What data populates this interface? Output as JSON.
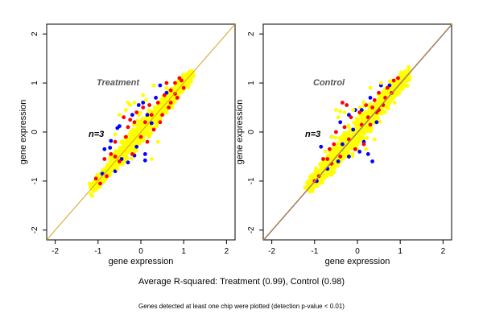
{
  "summary_text": "Average R-squared: Treatment (0.99), Control (0.98)",
  "note_text": "Genes detected at least one chip were plotted (detection p-value < 0.01)",
  "colors": {
    "series_a": "#0000ff",
    "series_b": "#ff0000",
    "series_c": "#ffff00",
    "diagonal": "#d4a020",
    "diagonal_control": "#6a5acd",
    "box": "#000000"
  },
  "chart_data": [
    {
      "type": "scatter",
      "panel": "treatment",
      "title": "",
      "label": "Treatment",
      "annotation": "n=3",
      "xlabel": "gene expression",
      "ylabel": "gene expression",
      "xlim": [
        -2.2,
        2.2
      ],
      "ylim": [
        -2.2,
        2.2
      ],
      "xticks": [
        -2,
        -1,
        0,
        1,
        2
      ],
      "yticks": [
        -2,
        -1,
        0,
        1,
        2
      ],
      "xtick_labels": [
        "-2",
        "-1",
        "0",
        "1",
        "2"
      ],
      "ytick_labels": [
        "-2",
        "-1",
        "0",
        "1",
        "2"
      ],
      "reference_line": "y = x",
      "grid": false,
      "cloud": {
        "x_range": [
          -1.15,
          1.2
        ],
        "core_width": 0.08,
        "point_density": "dense"
      },
      "series": [
        {
          "color": "blue",
          "points": [
            [
              -0.85,
              -0.35
            ],
            [
              -0.72,
              -0.32
            ],
            [
              -0.55,
              0.08
            ],
            [
              -0.5,
              0.12
            ],
            [
              -0.7,
              -0.18
            ],
            [
              -0.45,
              -0.55
            ],
            [
              -0.3,
              -0.62
            ],
            [
              -0.15,
              -0.48
            ],
            [
              0.1,
              -0.45
            ],
            [
              -0.05,
              0.55
            ],
            [
              -0.2,
              0.35
            ],
            [
              0.15,
              0.35
            ],
            [
              0.35,
              0.7
            ],
            [
              0.6,
              0.8
            ],
            [
              0.45,
              0.95
            ],
            [
              -0.9,
              -0.85
            ],
            [
              -0.6,
              -0.8
            ],
            [
              0.25,
              0.18
            ],
            [
              -0.1,
              -0.3
            ],
            [
              0.05,
              0.6
            ],
            [
              0.1,
              -0.58
            ]
          ]
        },
        {
          "color": "red",
          "points": [
            [
              -1.05,
              -0.95
            ],
            [
              -0.85,
              -0.55
            ],
            [
              -0.7,
              -0.45
            ],
            [
              -0.6,
              -0.2
            ],
            [
              -0.4,
              0.3
            ],
            [
              -0.25,
              0.25
            ],
            [
              -0.1,
              0.4
            ],
            [
              0.05,
              0.5
            ],
            [
              0.2,
              0.55
            ],
            [
              0.4,
              0.6
            ],
            [
              0.55,
              0.75
            ],
            [
              0.7,
              0.85
            ],
            [
              0.8,
              1.0
            ],
            [
              0.95,
              1.05
            ],
            [
              0.3,
              0.05
            ],
            [
              0.5,
              0.35
            ],
            [
              0.65,
              0.5
            ],
            [
              0.15,
              -0.2
            ],
            [
              -0.2,
              -0.45
            ],
            [
              -0.5,
              -0.6
            ],
            [
              -0.35,
              -0.1
            ],
            [
              0.0,
              -0.1
            ],
            [
              0.85,
              0.7
            ],
            [
              1.0,
              0.9
            ],
            [
              -0.8,
              -0.9
            ],
            [
              -0.95,
              -1.05
            ],
            [
              0.6,
              1.0
            ],
            [
              0.9,
              1.1
            ],
            [
              -0.3,
              0.1
            ],
            [
              0.25,
              0.35
            ],
            [
              0.45,
              0.2
            ],
            [
              0.7,
              0.6
            ],
            [
              -0.6,
              -0.5
            ],
            [
              0.1,
              0.2
            ],
            [
              -0.15,
              0.2
            ],
            [
              0.8,
              0.78
            ]
          ]
        },
        {
          "color": "yellow",
          "points": [
            [
              -0.3,
              0.6
            ],
            [
              -0.25,
              0.55
            ],
            [
              -0.5,
              0.35
            ],
            [
              -0.6,
              -0.05
            ],
            [
              -0.55,
              -0.75
            ],
            [
              0.25,
              -0.55
            ],
            [
              0.3,
              0.95
            ],
            [
              -0.15,
              0.6
            ],
            [
              0.05,
              0.75
            ],
            [
              0.6,
              0.9
            ],
            [
              -0.45,
              -0.35
            ],
            [
              0.4,
              -0.2
            ],
            [
              -0.35,
              0.45
            ],
            [
              -0.65,
              -0.6
            ],
            [
              0.12,
              0.65
            ]
          ]
        }
      ]
    },
    {
      "type": "scatter",
      "panel": "control",
      "title": "",
      "label": "Control",
      "annotation": "n=3",
      "xlabel": "gene expression",
      "ylabel": "gene expression",
      "xlim": [
        -2.2,
        2.2
      ],
      "ylim": [
        -2.2,
        2.2
      ],
      "xticks": [
        -2,
        -1,
        0,
        1,
        2
      ],
      "yticks": [
        -2,
        -1,
        0,
        1,
        2
      ],
      "xtick_labels": [
        "-2",
        "-1",
        "0",
        "1",
        "2"
      ],
      "ytick_labels": [
        "-2",
        "-1",
        "0",
        "1",
        "2"
      ],
      "reference_line": "y = x",
      "grid": false,
      "cloud": {
        "x_range": [
          -1.15,
          1.2
        ],
        "core_width": 0.1,
        "point_density": "dense"
      },
      "series": [
        {
          "color": "blue",
          "points": [
            [
              -0.85,
              -0.3
            ],
            [
              -0.6,
              -0.1
            ],
            [
              -0.4,
              0.2
            ],
            [
              -0.2,
              0.35
            ],
            [
              -0.05,
              0.45
            ],
            [
              0.1,
              0.45
            ],
            [
              0.3,
              0.7
            ],
            [
              0.55,
              0.95
            ],
            [
              0.35,
              -0.6
            ],
            [
              0.25,
              -0.45
            ],
            [
              0.05,
              -0.4
            ],
            [
              -0.2,
              -0.5
            ],
            [
              -0.45,
              -0.6
            ],
            [
              -0.7,
              -0.75
            ],
            [
              -0.95,
              -1.0
            ],
            [
              0.75,
              0.95
            ],
            [
              0.45,
              0.2
            ],
            [
              -0.1,
              0.05
            ],
            [
              0.15,
              -0.2
            ],
            [
              -0.35,
              -0.25
            ]
          ]
        },
        {
          "color": "red",
          "points": [
            [
              -0.35,
              0.6
            ],
            [
              -0.25,
              0.55
            ],
            [
              -0.15,
              0.3
            ],
            [
              0.05,
              0.4
            ],
            [
              0.2,
              0.55
            ],
            [
              0.4,
              0.65
            ],
            [
              0.5,
              0.8
            ],
            [
              0.7,
              0.9
            ],
            [
              0.85,
              1.05
            ],
            [
              0.95,
              1.1
            ],
            [
              -0.8,
              -0.55
            ],
            [
              -0.65,
              -0.35
            ],
            [
              -0.5,
              0.0
            ],
            [
              -0.3,
              0.1
            ],
            [
              0.3,
              0.15
            ],
            [
              0.5,
              0.45
            ],
            [
              0.6,
              0.55
            ],
            [
              0.15,
              -0.25
            ],
            [
              -0.05,
              -0.35
            ],
            [
              -0.4,
              -0.5
            ],
            [
              -0.6,
              -0.65
            ],
            [
              -0.9,
              -0.9
            ],
            [
              -1.0,
              -1.0
            ],
            [
              0.65,
              0.7
            ],
            [
              0.8,
              0.8
            ],
            [
              0.25,
              0.3
            ],
            [
              -0.2,
              -0.15
            ],
            [
              0.1,
              0.15
            ],
            [
              0.45,
              0.4
            ],
            [
              -0.55,
              -0.25
            ],
            [
              0.35,
              0.5
            ],
            [
              -0.7,
              -0.55
            ]
          ]
        },
        {
          "color": "yellow",
          "points": [
            [
              -0.5,
              0.45
            ],
            [
              -0.45,
              0.3
            ],
            [
              -0.4,
              0.42
            ],
            [
              -0.6,
              -0.1
            ],
            [
              -0.3,
              0.4
            ],
            [
              0.2,
              -0.35
            ],
            [
              0.3,
              0.9
            ],
            [
              -0.1,
              0.45
            ],
            [
              0.55,
              1.0
            ],
            [
              0.15,
              0.6
            ],
            [
              -0.55,
              -0.7
            ],
            [
              0.4,
              -0.15
            ]
          ]
        }
      ]
    }
  ]
}
